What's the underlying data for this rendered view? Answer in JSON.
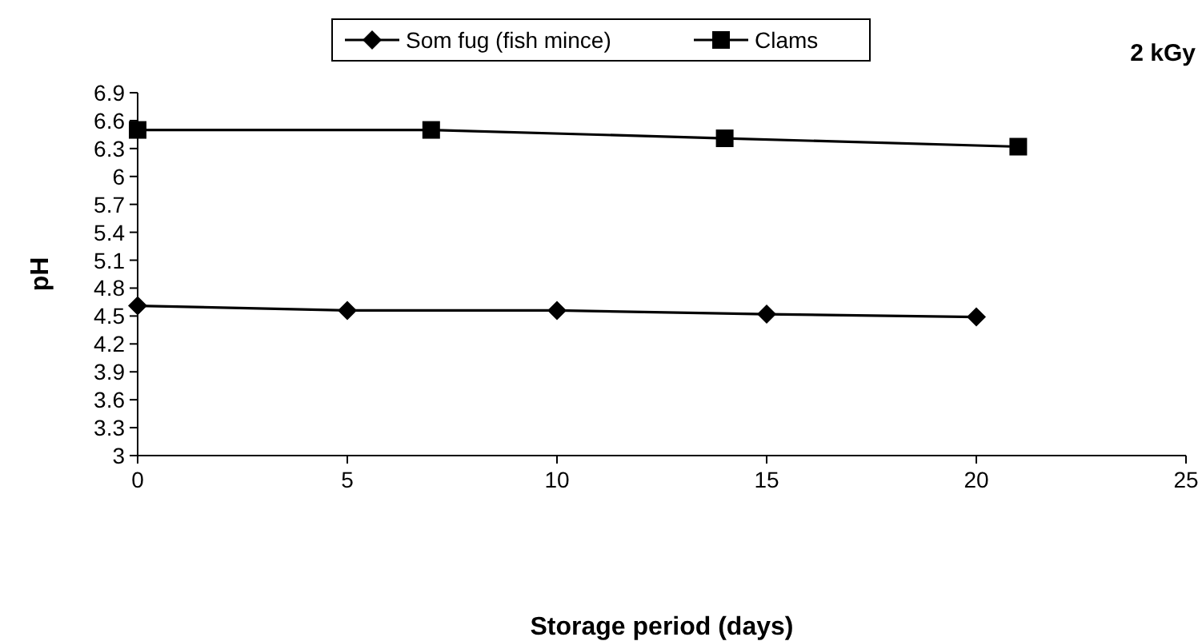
{
  "chart_data": {
    "type": "line",
    "xlabel": "Storage period (days)",
    "ylabel": "pH",
    "annotations": [
      "2 kGy"
    ],
    "xlim": [
      0,
      25
    ],
    "xticks": [
      0,
      5,
      10,
      15,
      20,
      25
    ],
    "ylim": [
      3,
      6.9
    ],
    "yticks": [
      3,
      3.3,
      3.6,
      3.9,
      4.2,
      4.5,
      4.8,
      5.1,
      5.4,
      5.7,
      6,
      6.3,
      6.6,
      6.9
    ],
    "legend": "top",
    "grid": false,
    "series": [
      {
        "name": "Som fug (fish mince)",
        "color": "#000000",
        "marker": "diamond",
        "x": [
          0,
          5,
          10,
          15,
          20
        ],
        "values": [
          4.61,
          4.56,
          4.56,
          4.52,
          4.49
        ]
      },
      {
        "name": "Clams",
        "color": "#000000",
        "marker": "square",
        "x": [
          0,
          7,
          14,
          21
        ],
        "values": [
          6.5,
          6.5,
          6.41,
          6.32
        ]
      }
    ]
  }
}
